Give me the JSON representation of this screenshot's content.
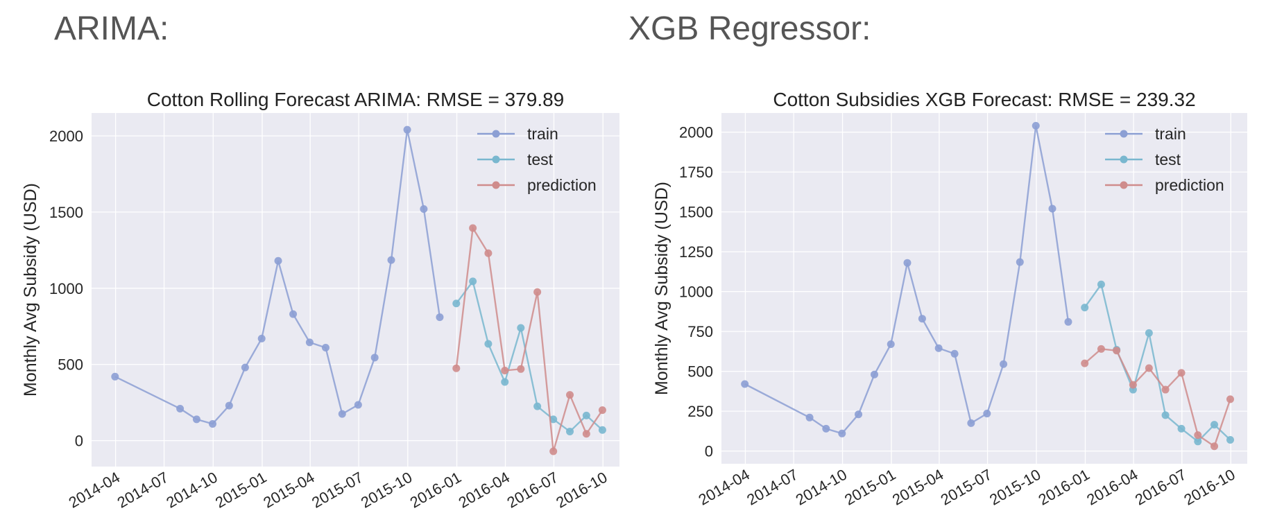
{
  "headings": {
    "left": "ARIMA:",
    "right": "XGB Regressor:"
  },
  "colors": {
    "train": "#8c9fd4",
    "test": "#79b7cf",
    "prediction": "#cf8c8c",
    "plot_bg": "#eaeaf2",
    "grid": "#ffffff"
  },
  "chart_data": [
    {
      "type": "line",
      "title": "Cotton Rolling Forecast ARIMA: RMSE = 379.89",
      "xlabel": "",
      "ylabel": "Monthly Avg Subsidy (USD)",
      "xlim": [
        "2014-02-15",
        "2016-11-01"
      ],
      "ylim": [
        -170,
        2150
      ],
      "yticks": [
        0,
        500,
        1000,
        1500,
        2000
      ],
      "xticks": [
        "2014-04",
        "2014-07",
        "2014-10",
        "2015-01",
        "2015-04",
        "2015-07",
        "2015-10",
        "2016-01",
        "2016-04",
        "2016-07",
        "2016-10"
      ],
      "grid": true,
      "legend": "top-right",
      "series": [
        {
          "name": "train",
          "x": [
            "2014-03-31",
            "2014-07-31",
            "2014-08-31",
            "2014-09-30",
            "2014-10-31",
            "2014-11-30",
            "2014-12-31",
            "2015-01-31",
            "2015-02-28",
            "2015-03-31",
            "2015-04-30",
            "2015-05-31",
            "2015-06-30",
            "2015-07-31",
            "2015-08-31",
            "2015-09-30",
            "2015-10-31",
            "2015-11-30"
          ],
          "y": [
            420,
            210,
            140,
            110,
            230,
            480,
            670,
            1180,
            830,
            645,
            610,
            175,
            235,
            545,
            1185,
            2040,
            1520,
            810
          ]
        },
        {
          "name": "test",
          "x": [
            "2015-12-31",
            "2016-01-31",
            "2016-02-29",
            "2016-03-31",
            "2016-04-30",
            "2016-05-31",
            "2016-06-30",
            "2016-07-31",
            "2016-08-31",
            "2016-09-30"
          ],
          "y": [
            900,
            1045,
            635,
            385,
            740,
            225,
            140,
            60,
            165,
            70
          ]
        },
        {
          "name": "prediction",
          "x": [
            "2015-12-31",
            "2016-01-31",
            "2016-02-29",
            "2016-03-31",
            "2016-04-30",
            "2016-05-31",
            "2016-06-30",
            "2016-07-31",
            "2016-08-31",
            "2016-09-30"
          ],
          "y": [
            475,
            1395,
            1230,
            460,
            470,
            975,
            -70,
            300,
            45,
            200
          ]
        }
      ]
    },
    {
      "type": "line",
      "title": "Cotton Subsidies XGB Forecast: RMSE = 239.32",
      "xlabel": "",
      "ylabel": "Monthly Avg Subsidy (USD)",
      "xlim": [
        "2014-02-15",
        "2016-11-01"
      ],
      "ylim": [
        -80,
        2120
      ],
      "yticks": [
        0,
        250,
        500,
        750,
        1000,
        1250,
        1500,
        1750,
        2000
      ],
      "xticks": [
        "2014-04",
        "2014-07",
        "2014-10",
        "2015-01",
        "2015-04",
        "2015-07",
        "2015-10",
        "2016-01",
        "2016-04",
        "2016-07",
        "2016-10"
      ],
      "grid": true,
      "legend": "top-right",
      "series": [
        {
          "name": "train",
          "x": [
            "2014-03-31",
            "2014-07-31",
            "2014-08-31",
            "2014-09-30",
            "2014-10-31",
            "2014-11-30",
            "2014-12-31",
            "2015-01-31",
            "2015-02-28",
            "2015-03-31",
            "2015-04-30",
            "2015-05-31",
            "2015-06-30",
            "2015-07-31",
            "2015-08-31",
            "2015-09-30",
            "2015-10-31",
            "2015-11-30"
          ],
          "y": [
            420,
            210,
            140,
            110,
            230,
            480,
            670,
            1180,
            830,
            645,
            610,
            175,
            235,
            545,
            1185,
            2040,
            1520,
            810
          ]
        },
        {
          "name": "test",
          "x": [
            "2015-12-31",
            "2016-01-31",
            "2016-02-29",
            "2016-03-31",
            "2016-04-30",
            "2016-05-31",
            "2016-06-30",
            "2016-07-31",
            "2016-08-31",
            "2016-09-30"
          ],
          "y": [
            900,
            1045,
            635,
            385,
            740,
            225,
            140,
            60,
            165,
            70
          ]
        },
        {
          "name": "prediction",
          "x": [
            "2015-12-31",
            "2016-01-31",
            "2016-02-29",
            "2016-03-31",
            "2016-04-30",
            "2016-05-31",
            "2016-06-30",
            "2016-07-31",
            "2016-08-31",
            "2016-09-30"
          ],
          "y": [
            550,
            640,
            630,
            415,
            520,
            385,
            490,
            100,
            30,
            325
          ]
        }
      ]
    }
  ]
}
